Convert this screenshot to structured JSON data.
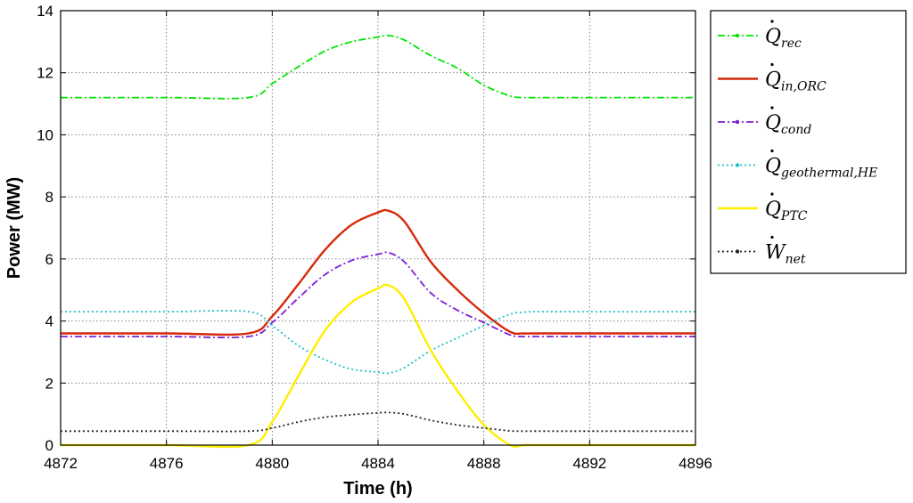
{
  "chart_data": {
    "type": "line",
    "title": "",
    "xlabel": "Time (h)",
    "ylabel": "Power (MW)",
    "xlim": [
      4872,
      4896
    ],
    "ylim": [
      0,
      14
    ],
    "xticks": [
      4872,
      4876,
      4880,
      4884,
      4888,
      4892,
      4896
    ],
    "yticks": [
      0,
      2,
      4,
      6,
      8,
      10,
      12,
      14
    ],
    "grid": true,
    "legend_position": "outside-right",
    "x": [
      4872,
      4876,
      4879.1,
      4880,
      4881,
      4882,
      4883,
      4884,
      4884.4,
      4885,
      4886,
      4887,
      4888,
      4889,
      4889.5,
      4890,
      4892,
      4896
    ],
    "series": [
      {
        "name": "Q",
        "subscript": "rec",
        "accent": "dot",
        "color": "#00e600",
        "style": "dashdot",
        "values": [
          11.2,
          11.2,
          11.2,
          11.65,
          12.2,
          12.7,
          13.0,
          13.15,
          13.2,
          13.05,
          12.55,
          12.15,
          11.6,
          11.25,
          11.2,
          11.2,
          11.2,
          11.2
        ]
      },
      {
        "name": "Q",
        "subscript": "in,ORC",
        "accent": "dot",
        "color": "#d62a0a",
        "style": "solid",
        "values": [
          3.6,
          3.6,
          3.6,
          4.15,
          5.2,
          6.3,
          7.1,
          7.5,
          7.55,
          7.2,
          5.9,
          5.0,
          4.25,
          3.65,
          3.6,
          3.6,
          3.6,
          3.6
        ]
      },
      {
        "name": "Q",
        "subscript": "cond",
        "accent": "dot",
        "color": "#7d1fd6",
        "style": "dashdot",
        "values": [
          3.5,
          3.5,
          3.5,
          3.95,
          4.75,
          5.5,
          5.95,
          6.15,
          6.2,
          5.9,
          4.9,
          4.35,
          3.95,
          3.55,
          3.5,
          3.5,
          3.5,
          3.5
        ]
      },
      {
        "name": "Q",
        "subscript": "geothermal,HE",
        "accent": "dot",
        "color": "#1cc0c8",
        "style": "dotted",
        "values": [
          4.3,
          4.3,
          4.3,
          3.85,
          3.2,
          2.75,
          2.45,
          2.35,
          2.32,
          2.5,
          3.05,
          3.45,
          3.85,
          4.22,
          4.28,
          4.3,
          4.3,
          4.3
        ]
      },
      {
        "name": "Q",
        "subscript": "PTC",
        "accent": "dot",
        "color": "#ffee00",
        "style": "solid",
        "values": [
          0,
          0,
          0,
          0.75,
          2.25,
          3.7,
          4.6,
          5.05,
          5.15,
          4.7,
          3.05,
          1.75,
          0.65,
          0,
          0,
          0,
          0,
          0
        ]
      },
      {
        "name": "W",
        "subscript": "net",
        "accent": "dot",
        "color": "#222222",
        "style": "dotted",
        "values": [
          0.45,
          0.45,
          0.45,
          0.55,
          0.75,
          0.9,
          0.98,
          1.04,
          1.05,
          1.0,
          0.8,
          0.65,
          0.55,
          0.46,
          0.45,
          0.45,
          0.45,
          0.45
        ]
      }
    ]
  }
}
